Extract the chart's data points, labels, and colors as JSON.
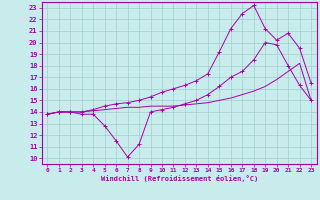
{
  "background_color": "#c8ecec",
  "grid_color": "#a0cece",
  "line_color": "#aa00aa",
  "xlabel": "Windchill (Refroidissement éolien,°C)",
  "xlim": [
    -0.5,
    23.5
  ],
  "ylim": [
    9.5,
    23.5
  ],
  "xticks": [
    0,
    1,
    2,
    3,
    4,
    5,
    6,
    7,
    8,
    9,
    10,
    11,
    12,
    13,
    14,
    15,
    16,
    17,
    18,
    19,
    20,
    21,
    22,
    23
  ],
  "yticks": [
    10,
    11,
    12,
    13,
    14,
    15,
    16,
    17,
    18,
    19,
    20,
    21,
    22,
    23
  ],
  "line1_x": [
    0,
    1,
    2,
    3,
    4,
    5,
    6,
    7,
    8,
    9,
    10,
    11,
    12,
    13,
    14,
    15,
    16,
    17,
    18,
    19,
    20,
    21,
    22,
    23
  ],
  "line1_y": [
    13.8,
    14.0,
    14.0,
    13.8,
    13.8,
    12.8,
    11.5,
    10.1,
    11.2,
    14.0,
    14.2,
    14.4,
    14.7,
    15.0,
    15.5,
    16.2,
    17.0,
    17.5,
    18.5,
    20.0,
    19.8,
    18.0,
    16.3,
    15.0
  ],
  "line2_x": [
    0,
    1,
    2,
    3,
    4,
    5,
    6,
    7,
    8,
    9,
    10,
    11,
    12,
    13,
    14,
    15,
    16,
    17,
    18,
    19,
    20,
    21,
    22,
    23
  ],
  "line2_y": [
    13.8,
    14.0,
    14.0,
    14.0,
    14.1,
    14.2,
    14.3,
    14.4,
    14.4,
    14.5,
    14.5,
    14.5,
    14.6,
    14.7,
    14.8,
    15.0,
    15.2,
    15.5,
    15.8,
    16.2,
    16.8,
    17.5,
    18.2,
    15.0
  ],
  "line3_x": [
    0,
    1,
    2,
    3,
    4,
    5,
    6,
    7,
    8,
    9,
    10,
    11,
    12,
    13,
    14,
    15,
    16,
    17,
    18,
    19,
    20,
    21,
    22,
    23
  ],
  "line3_y": [
    13.8,
    14.0,
    14.0,
    14.0,
    14.2,
    14.5,
    14.7,
    14.8,
    15.0,
    15.3,
    15.7,
    16.0,
    16.3,
    16.7,
    17.3,
    19.2,
    21.2,
    22.5,
    23.2,
    21.2,
    20.2,
    20.8,
    19.5,
    16.5
  ]
}
